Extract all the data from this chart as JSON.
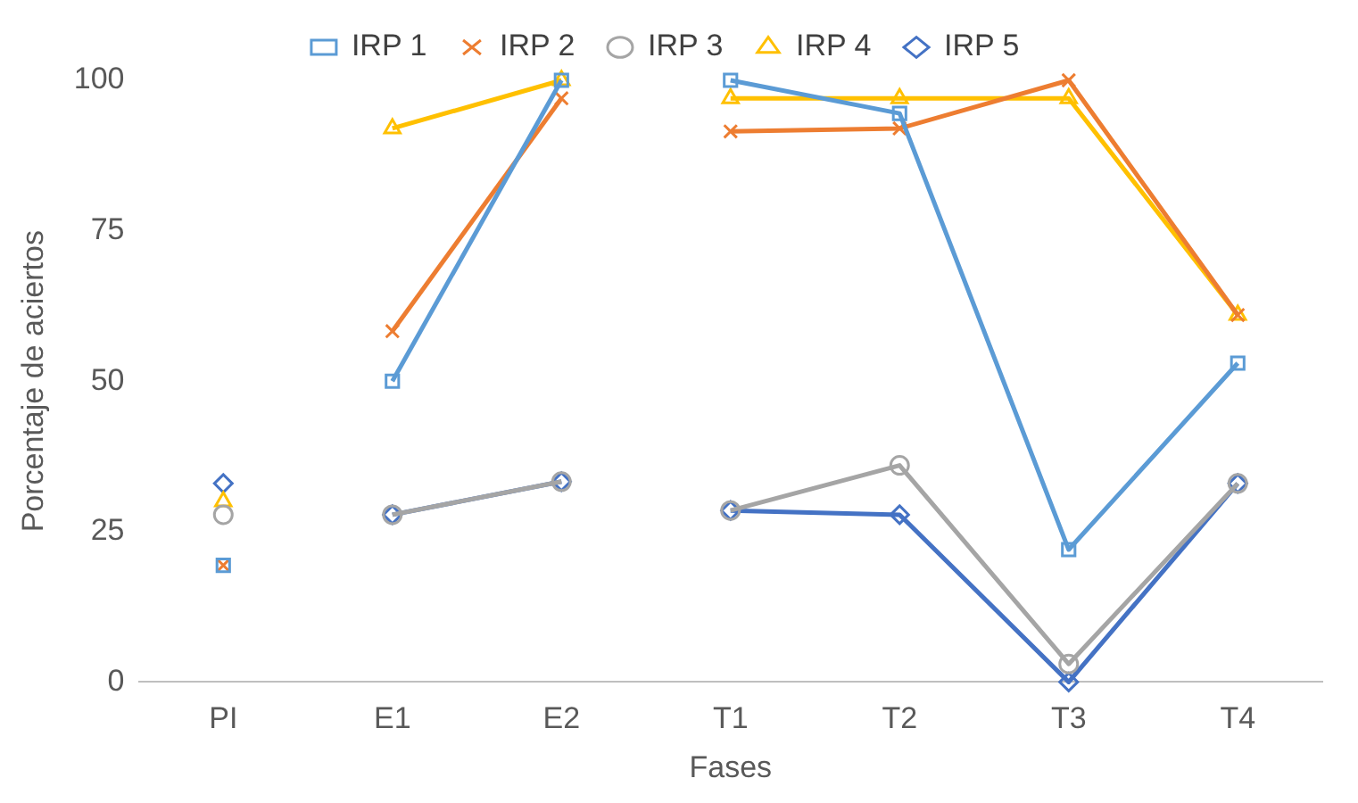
{
  "chart_data": {
    "type": "line",
    "xlabel": "Fases",
    "ylabel": "Porcentaje de aciertos",
    "categories": [
      "PI",
      "E1",
      "E2",
      "T1",
      "T2",
      "T3",
      "T4"
    ],
    "ylim": [
      0,
      100
    ],
    "yticks": [
      0,
      25,
      50,
      75,
      100
    ],
    "grid": false,
    "legend": "top",
    "line_style": "solid",
    "series": [
      {
        "name": "IRP 1",
        "color": "#5b9bd5",
        "marker": "square",
        "values": [
          19.4,
          null,
          null,
          null,
          null,
          null,
          null
        ]
      },
      {
        "color": "#5b9bd5",
        "marker": "square",
        "values": [
          null,
          50,
          100,
          null,
          null,
          null,
          null
        ]
      },
      {
        "color": "#5b9bd5",
        "marker": "square",
        "values": [
          null,
          null,
          null,
          100,
          94.5,
          22,
          53
        ]
      },
      {
        "name": "IRP 2",
        "color": "#ed7d31",
        "marker": "cross",
        "values": [
          19.4,
          null,
          null,
          null,
          null,
          null,
          null
        ]
      },
      {
        "color": "#ed7d31",
        "marker": "cross",
        "values": [
          null,
          58.3,
          97,
          null,
          null,
          null,
          null
        ]
      },
      {
        "color": "#ed7d31",
        "marker": "cross",
        "values": [
          null,
          null,
          null,
          91.5,
          92,
          100,
          61
        ]
      },
      {
        "name": "IRP 3",
        "color": "#a5a5a5",
        "marker": "circle",
        "values": [
          27.8,
          null,
          null,
          null,
          null,
          null,
          null
        ]
      },
      {
        "color": "#a5a5a5",
        "marker": "circle",
        "values": [
          null,
          27.8,
          33.3,
          null,
          null,
          null,
          null
        ]
      },
      {
        "color": "#a5a5a5",
        "marker": "circle",
        "values": [
          null,
          null,
          null,
          28.5,
          36,
          3,
          33
        ]
      },
      {
        "name": "IRP 4",
        "color": "#ffc000",
        "marker": "triangle",
        "values": [
          30,
          null,
          null,
          null,
          null,
          null,
          null
        ]
      },
      {
        "color": "#ffc000",
        "marker": "triangle",
        "values": [
          null,
          92,
          100,
          null,
          null,
          null,
          null
        ]
      },
      {
        "color": "#ffc000",
        "marker": "triangle",
        "values": [
          null,
          null,
          null,
          97,
          97,
          97,
          61
        ]
      },
      {
        "name": "IRP 5",
        "color": "#4472c4",
        "marker": "diamond",
        "values": [
          33,
          null,
          null,
          null,
          null,
          null,
          null
        ]
      },
      {
        "color": "#4472c4",
        "marker": "diamond",
        "values": [
          null,
          27.8,
          33.3,
          null,
          null,
          null,
          null
        ]
      },
      {
        "color": "#4472c4",
        "marker": "diamond",
        "values": [
          null,
          null,
          null,
          28.5,
          27.8,
          0,
          33
        ]
      }
    ]
  }
}
